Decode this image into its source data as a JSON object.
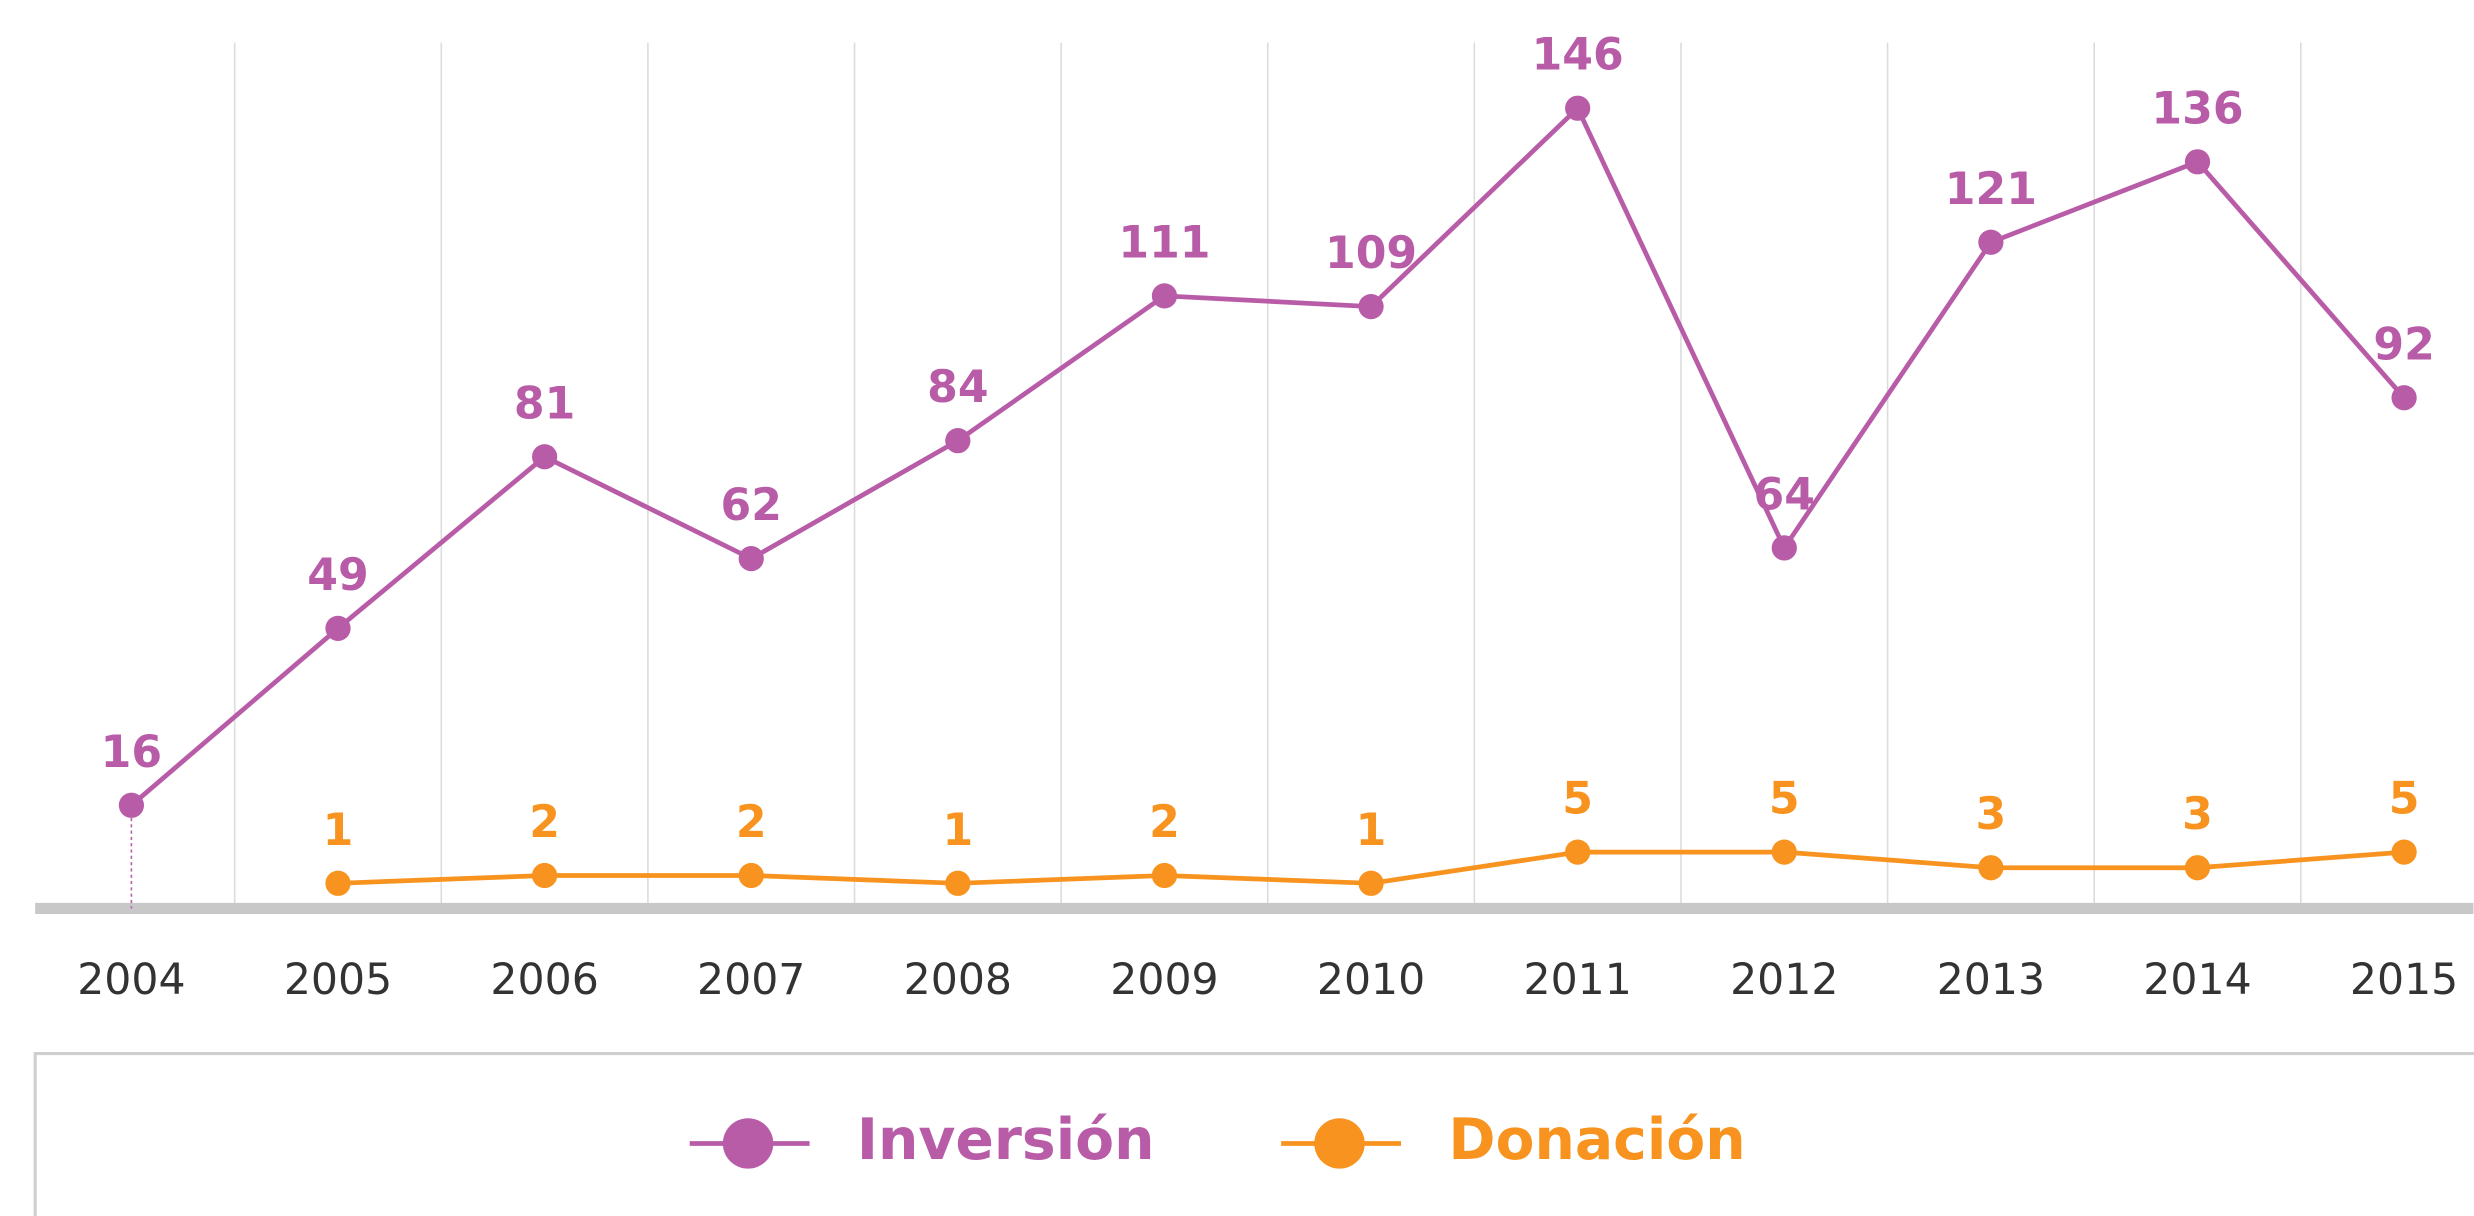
{
  "chart_data": {
    "type": "line",
    "categories": [
      "2004",
      "2005",
      "2006",
      "2007",
      "2008",
      "2009",
      "2010",
      "2011",
      "2012",
      "2013",
      "2014",
      "2015"
    ],
    "series": [
      {
        "name": "Inversión",
        "color": "#b85ca8",
        "values": [
          16,
          49,
          81,
          62,
          84,
          111,
          109,
          146,
          64,
          121,
          136,
          92
        ]
      },
      {
        "name": "Donación",
        "color": "#f7931e",
        "axis": "y2",
        "values": [
          null,
          1,
          2,
          2,
          1,
          2,
          1,
          5,
          5,
          3,
          3,
          5
        ]
      }
    ],
    "ylim": [
      0,
      160
    ],
    "y2lim": [
      0,
      110
    ],
    "grid": true,
    "legend": "bottom"
  }
}
